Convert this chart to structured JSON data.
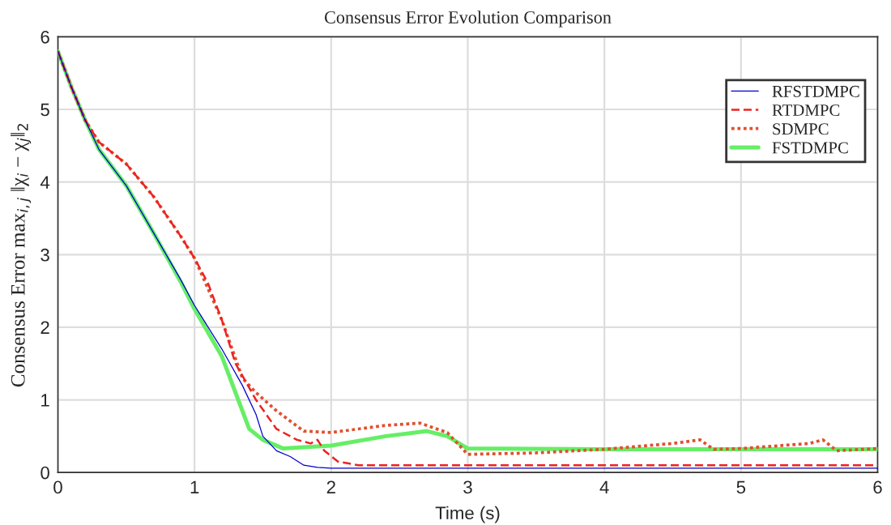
{
  "chart_data": {
    "type": "line",
    "title": "Consensus Error Evolution Comparison",
    "xlabel": "Time (s)",
    "ylabel": "Consensus Error max$_{i,j}$ ‖χ$_{i}$ − χ$_{j}$‖$_{2}$",
    "xlim": [
      0,
      6
    ],
    "ylim": [
      0,
      6
    ],
    "xticks": [
      0,
      1,
      2,
      3,
      4,
      5,
      6
    ],
    "yticks": [
      0,
      1,
      2,
      3,
      4,
      5,
      6
    ],
    "grid": true,
    "legend": "top right",
    "marker": "none",
    "series": [
      {
        "name": "RFSTDMPC",
        "color": "#0000cc",
        "line_style": "solid",
        "x": [
          0,
          0.1,
          0.2,
          0.3,
          0.5,
          0.7,
          0.9,
          1.0,
          1.2,
          1.35,
          1.45,
          1.5,
          1.6,
          1.7,
          1.8,
          1.9,
          2.0,
          6
        ],
        "values": [
          5.8,
          5.3,
          4.85,
          4.45,
          3.95,
          3.3,
          2.65,
          2.3,
          1.7,
          1.2,
          0.8,
          0.5,
          0.3,
          0.22,
          0.1,
          0.07,
          0.06,
          0.06
        ]
      },
      {
        "name": "RTDMPC",
        "color": "#ee2222",
        "line_style": "dashed",
        "x": [
          0,
          0.1,
          0.2,
          0.3,
          0.5,
          0.7,
          0.9,
          1.0,
          1.1,
          1.2,
          1.3,
          1.45,
          1.6,
          1.75,
          1.85,
          1.9,
          1.95,
          2.05,
          2.2,
          6
        ],
        "values": [
          5.8,
          5.3,
          4.85,
          4.55,
          4.25,
          3.8,
          3.25,
          2.95,
          2.6,
          2.1,
          1.5,
          1.0,
          0.6,
          0.45,
          0.4,
          0.45,
          0.3,
          0.15,
          0.1,
          0.1
        ]
      },
      {
        "name": "SDMPC",
        "color": "#e05030",
        "line_style": "dotted",
        "x": [
          0,
          0.1,
          0.2,
          0.3,
          0.5,
          0.7,
          0.9,
          1.0,
          1.2,
          1.35,
          1.45,
          1.6,
          1.8,
          2.0,
          2.4,
          2.65,
          2.85,
          3.0,
          3.5,
          4.0,
          4.5,
          4.7,
          4.8,
          5.0,
          5.5,
          5.6,
          5.7,
          6.0
        ],
        "values": [
          5.8,
          5.3,
          4.85,
          4.55,
          4.25,
          3.8,
          3.25,
          2.95,
          2.1,
          1.3,
          1.1,
          0.85,
          0.57,
          0.55,
          0.65,
          0.68,
          0.55,
          0.25,
          0.27,
          0.32,
          0.4,
          0.45,
          0.32,
          0.33,
          0.4,
          0.45,
          0.3,
          0.33
        ]
      },
      {
        "name": "FSTDMPC",
        "color": "#66ee66",
        "line_style": "solid",
        "x": [
          0,
          0.1,
          0.2,
          0.3,
          0.5,
          0.7,
          0.9,
          1.0,
          1.2,
          1.3,
          1.4,
          1.5,
          1.65,
          2.0,
          2.4,
          2.7,
          2.85,
          3.0,
          4.0,
          6.0
        ],
        "values": [
          5.8,
          5.3,
          4.85,
          4.45,
          3.95,
          3.3,
          2.62,
          2.25,
          1.6,
          1.1,
          0.6,
          0.45,
          0.33,
          0.37,
          0.5,
          0.57,
          0.5,
          0.33,
          0.32,
          0.32
        ]
      }
    ]
  }
}
